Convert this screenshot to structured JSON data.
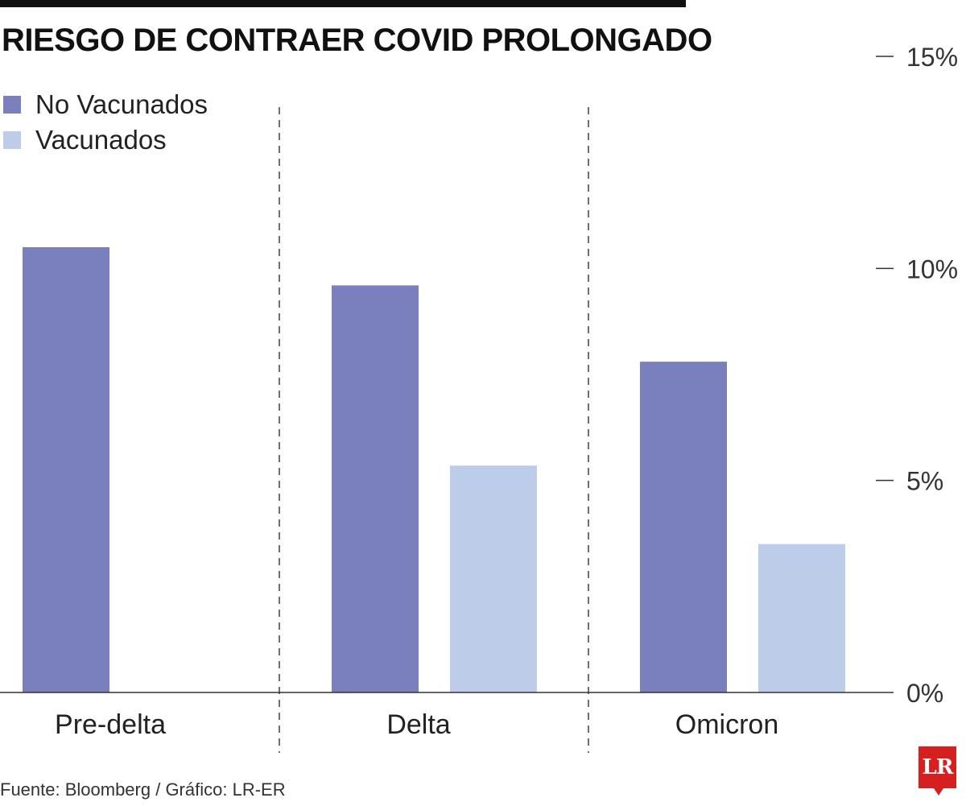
{
  "chart_data": {
    "type": "bar",
    "title": "RIESGO DE CONTRAER COVID PROLONGADO",
    "categories": [
      "Pre-delta",
      "Delta",
      "Omicron"
    ],
    "series": [
      {
        "name": "No Vacunados",
        "color": "#7a80bd",
        "values": [
          10.5,
          9.6,
          7.8
        ]
      },
      {
        "name": "Vacunados",
        "color": "#bccce9",
        "values": [
          null,
          5.35,
          3.5
        ]
      }
    ],
    "xlabel": "",
    "ylabel": "",
    "ylim": [
      0,
      15
    ],
    "yticks": [
      {
        "value": 15,
        "label": "15%"
      },
      {
        "value": 10,
        "label": "10%"
      },
      {
        "value": 5,
        "label": "5%"
      },
      {
        "value": 0,
        "label": "0%"
      }
    ],
    "legend_position": "top-left",
    "grid": false
  },
  "footer": {
    "source": "Fuente: Bloomberg / Gráfico: LR-ER"
  },
  "logo": {
    "text": "LR",
    "color": "#d6201f"
  }
}
